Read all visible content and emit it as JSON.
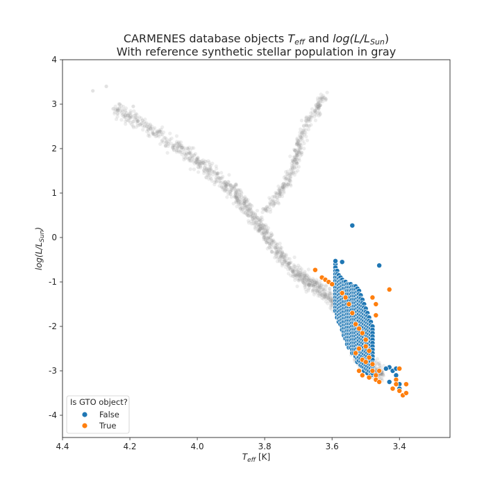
{
  "chart_data": {
    "type": "scatter",
    "title": "CARMENES database objects T_eff and log(L/L_Sun)",
    "title_parts": {
      "line1_prefix": "CARMENES database objects ",
      "teff_base": "T",
      "teff_sub": "eff",
      "line1_mid": " and ",
      "log_prefix": "log(L/L",
      "log_sub": "Sun",
      "log_suffix": ")"
    },
    "subtitle": "With reference synthetic stellar population in gray",
    "xlabel": "T_eff [K]",
    "xlabel_parts": {
      "base": "T",
      "sub": "eff",
      "suffix": " [K]"
    },
    "ylabel": "log(L/L_Sun)",
    "ylabel_parts": {
      "prefix": "log(L/L",
      "sub": "Sun",
      "suffix": ")"
    },
    "x_inverted": true,
    "xlim": [
      4.4,
      3.25
    ],
    "ylim": [
      -4.5,
      4.0
    ],
    "xticks": [
      "4.4",
      "4.2",
      "4.0",
      "3.8",
      "3.6",
      "3.4"
    ],
    "yticks": [
      "4",
      "3",
      "2",
      "1",
      "0",
      "-1",
      "-2",
      "-3",
      "-4"
    ],
    "grid": false,
    "legend": {
      "title": "Is GTO object?",
      "placement": "lower-left",
      "entries": [
        {
          "label": "False",
          "color": "#1f77b4"
        },
        {
          "label": "True",
          "color": "#ff7f0e"
        }
      ]
    },
    "reference_population": {
      "color": "#8c8c8c",
      "main_sequence": [
        [
          4.25,
          2.9
        ],
        [
          4.15,
          2.5
        ],
        [
          4.05,
          2.0
        ],
        [
          3.98,
          1.6
        ],
        [
          3.9,
          1.1
        ],
        [
          3.85,
          0.65
        ],
        [
          3.8,
          0.1
        ],
        [
          3.75,
          -0.45
        ],
        [
          3.7,
          -0.85
        ],
        [
          3.65,
          -1.1
        ],
        [
          3.6,
          -1.4
        ],
        [
          3.57,
          -1.75
        ],
        [
          3.55,
          -2.2
        ],
        [
          3.53,
          -2.6
        ],
        [
          3.51,
          -2.85
        ],
        [
          3.48,
          -2.95
        ],
        [
          3.45,
          -3.05
        ]
      ],
      "giant_branch": [
        [
          3.8,
          0.6
        ],
        [
          3.76,
          0.95
        ],
        [
          3.73,
          1.3
        ],
        [
          3.71,
          1.7
        ],
        [
          3.7,
          2.0
        ],
        [
          3.69,
          2.3
        ],
        [
          3.67,
          2.6
        ],
        [
          3.64,
          2.95
        ],
        [
          3.62,
          3.2
        ]
      ],
      "outliers": [
        [
          4.31,
          3.3
        ],
        [
          4.27,
          3.4
        ],
        [
          4.23,
          3.0
        ],
        [
          4.19,
          2.95
        ],
        [
          4.2,
          2.7
        ]
      ]
    },
    "series": [
      {
        "name": "False",
        "color": "#1f77b4",
        "grid_columns_x": [
          3.59,
          3.585,
          3.58,
          3.575,
          3.57,
          3.565,
          3.56,
          3.555,
          3.55,
          3.545,
          3.54,
          3.535,
          3.53,
          3.525,
          3.52,
          3.515,
          3.51,
          3.505,
          3.5,
          3.495,
          3.49,
          3.485,
          3.48
        ],
        "grid_columns_ytop": [
          -0.6,
          -0.75,
          -0.85,
          -0.9,
          -0.95,
          -1.0,
          -1.0,
          -1.05,
          -1.05,
          -1.05,
          -1.1,
          -1.1,
          -1.1,
          -1.15,
          -1.2,
          -1.3,
          -1.4,
          -1.5,
          -1.6,
          -1.7,
          -1.8,
          -1.9,
          -2.0
        ],
        "grid_columns_ybot": [
          -1.7,
          -1.8,
          -1.9,
          -2.0,
          -2.1,
          -2.2,
          -2.3,
          -2.4,
          -2.5,
          -2.5,
          -2.6,
          -2.6,
          -2.7,
          -2.8,
          -2.8,
          -2.9,
          -2.95,
          -3.0,
          -3.0,
          -3.05,
          -3.05,
          -3.1,
          -3.1
        ],
        "points": [
          [
            3.54,
            0.27
          ],
          [
            3.46,
            -0.63
          ],
          [
            3.59,
            -0.53
          ],
          [
            3.57,
            -0.55
          ],
          [
            3.43,
            -2.92
          ],
          [
            3.42,
            -3.0
          ],
          [
            3.41,
            -3.1
          ],
          [
            3.41,
            -3.2
          ],
          [
            3.4,
            -3.3
          ],
          [
            3.4,
            -3.4
          ],
          [
            3.41,
            -2.95
          ],
          [
            3.44,
            -2.95
          ],
          [
            3.43,
            -3.25
          ]
        ]
      },
      {
        "name": "True",
        "color": "#ff7f0e",
        "points": [
          [
            3.65,
            -0.73
          ],
          [
            3.63,
            -0.9
          ],
          [
            3.62,
            -0.95
          ],
          [
            3.61,
            -1.0
          ],
          [
            3.6,
            -1.05
          ],
          [
            3.57,
            -1.25
          ],
          [
            3.56,
            -1.35
          ],
          [
            3.55,
            -1.5
          ],
          [
            3.54,
            -1.7
          ],
          [
            3.53,
            -1.95
          ],
          [
            3.52,
            -2.05
          ],
          [
            3.51,
            -2.15
          ],
          [
            3.5,
            -2.3
          ],
          [
            3.5,
            -2.45
          ],
          [
            3.49,
            -2.55
          ],
          [
            3.49,
            -2.7
          ],
          [
            3.48,
            -2.85
          ],
          [
            3.48,
            -3.0
          ],
          [
            3.47,
            -3.1
          ],
          [
            3.47,
            -3.2
          ],
          [
            3.46,
            -3.25
          ],
          [
            3.52,
            -2.5
          ],
          [
            3.53,
            -2.6
          ],
          [
            3.51,
            -2.75
          ],
          [
            3.5,
            -2.8
          ],
          [
            3.52,
            -3.0
          ],
          [
            3.43,
            -1.17
          ],
          [
            3.48,
            -1.35
          ],
          [
            3.47,
            -1.5
          ],
          [
            3.47,
            -1.75
          ],
          [
            3.4,
            -2.95
          ],
          [
            3.41,
            -3.2
          ],
          [
            3.41,
            -3.3
          ],
          [
            3.4,
            -3.45
          ],
          [
            3.39,
            -3.55
          ],
          [
            3.38,
            -3.3
          ],
          [
            3.38,
            -3.5
          ],
          [
            3.42,
            -3.4
          ],
          [
            3.49,
            -3.15
          ],
          [
            3.46,
            -3.0
          ],
          [
            3.51,
            -3.1
          ]
        ]
      }
    ]
  }
}
